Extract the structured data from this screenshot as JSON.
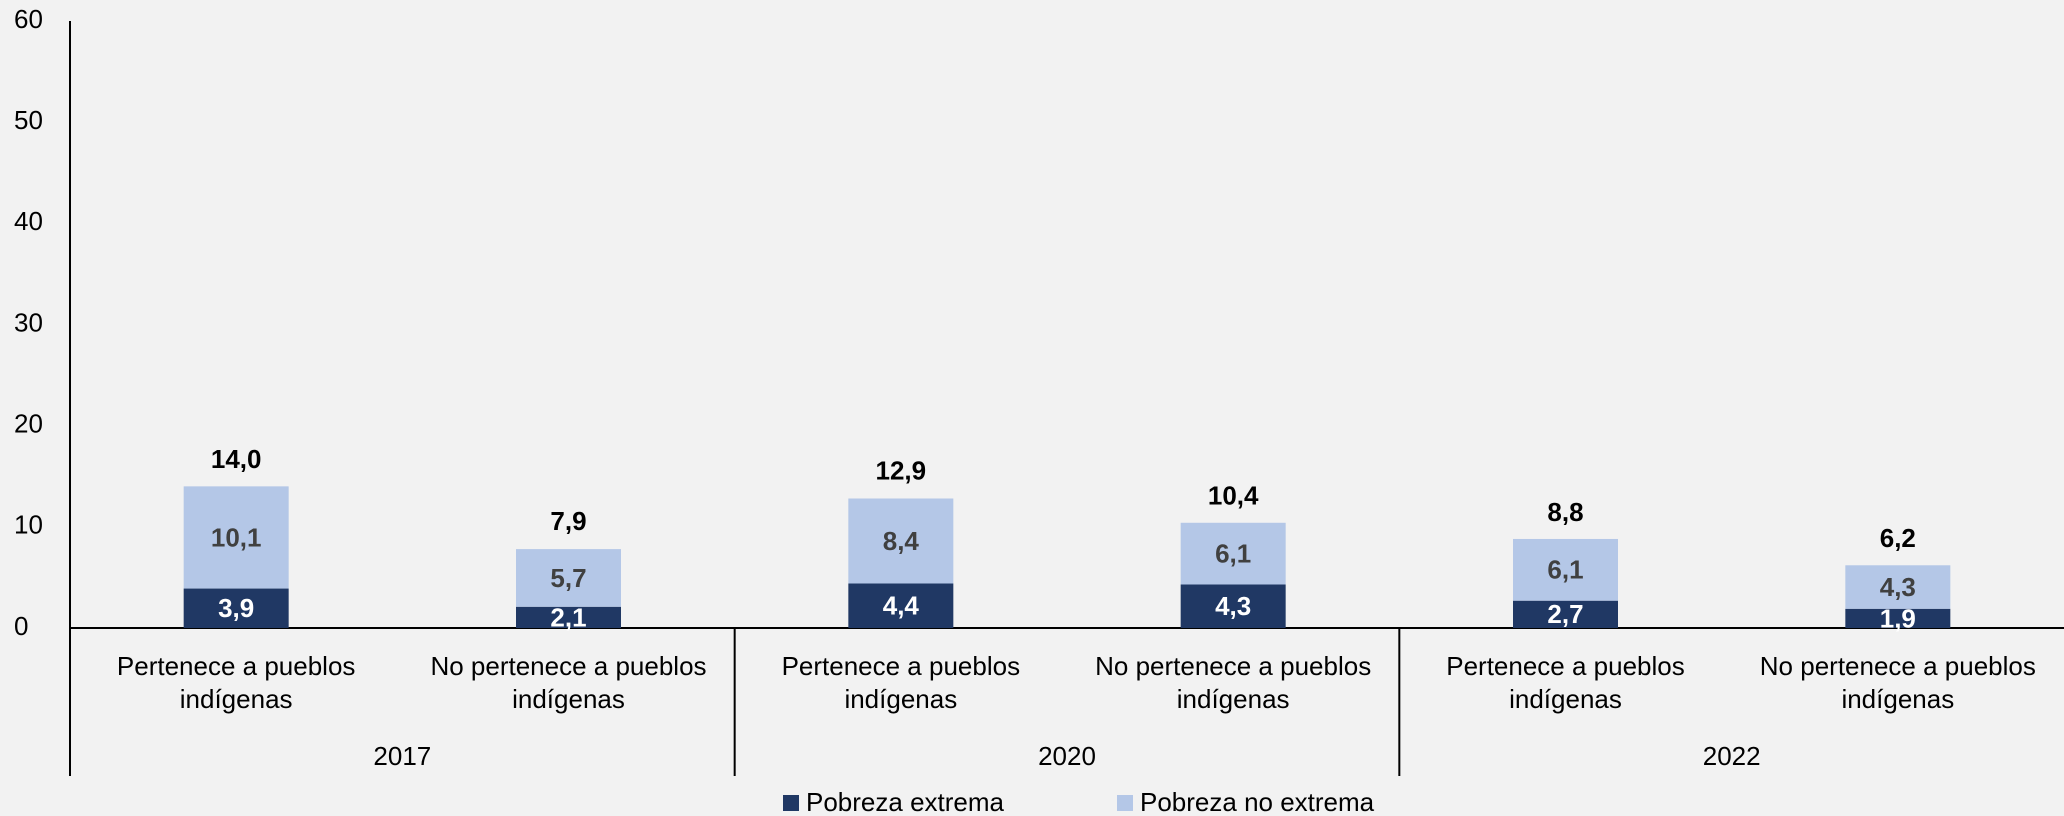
{
  "chart_data": {
    "type": "stacked_bar",
    "categories": [
      "Pertenece a pueblos indígenas",
      "No pertenece a pueblos indígenas",
      "Pertenece a pueblos indígenas",
      "No pertenece a pueblos indígenas",
      "Pertenece a pueblos indígenas",
      "No pertenece a pueblos indígenas"
    ],
    "groups": [
      "2017",
      "2020",
      "2022"
    ],
    "series": [
      {
        "name": "Pobreza extrema",
        "color": "#203864",
        "label_color": "#ffffff",
        "values": [
          3.9,
          2.1,
          4.4,
          4.3,
          2.7,
          1.9
        ],
        "value_labels": [
          "3,9",
          "2,1",
          "4,4",
          "4,3",
          "2,7",
          "1,9"
        ]
      },
      {
        "name": "Pobreza no extrema",
        "color": "#b4c7e7",
        "label_color": "#404040",
        "values": [
          10.1,
          5.7,
          8.4,
          6.1,
          6.1,
          4.3
        ],
        "value_labels": [
          "10,1",
          "5,7",
          "8,4",
          "6,1",
          "6,1",
          "4,3"
        ]
      }
    ],
    "totals": [
      14.0,
      7.9,
      12.9,
      10.4,
      8.8,
      6.2
    ],
    "total_labels": [
      "14,0",
      "7,9",
      "12,9",
      "10,4",
      "8,8",
      "6,2"
    ],
    "ylim": [
      0,
      60
    ],
    "yticks": [
      0,
      10,
      20,
      30,
      40,
      50,
      60
    ],
    "grid": false
  }
}
